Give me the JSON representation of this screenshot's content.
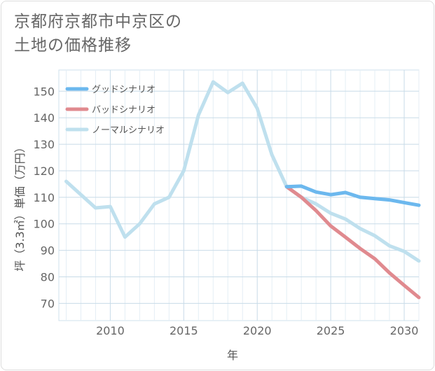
{
  "title": {
    "line1": "京都府京都市中京区の",
    "line2": "土地の価格推移"
  },
  "chart_data": {
    "type": "line",
    "xlabel": "年",
    "ylabel": "坪（3.3㎡）単価（万円）",
    "xlim": [
      2006.5,
      2031
    ],
    "ylim": [
      63.5,
      158
    ],
    "x_ticks": [
      2010,
      2015,
      2020,
      2025,
      2030
    ],
    "y_ticks": [
      70,
      80,
      90,
      100,
      110,
      120,
      130,
      140,
      150
    ],
    "grid": true,
    "legend_position": "top-left",
    "series": [
      {
        "name": "グッドシナリオ",
        "color": "#6cb8ee",
        "x": [
          2022,
          2023,
          2024,
          2025,
          2026,
          2027,
          2028,
          2029,
          2030,
          2031
        ],
        "values": [
          114,
          114.2,
          112,
          111,
          111.8,
          110,
          109.5,
          109,
          108,
          107
        ]
      },
      {
        "name": "バッドシナリオ",
        "color": "#e08a8f",
        "x": [
          2022,
          2023,
          2024,
          2025,
          2026,
          2027,
          2028,
          2029,
          2030,
          2031
        ],
        "values": [
          114,
          110,
          105,
          99.2,
          95,
          90.7,
          86.8,
          81.5,
          76.8,
          72.2
        ]
      },
      {
        "name": "ノーマルシナリオ",
        "color": "#bfe0ee",
        "x": [
          2007,
          2008,
          2009,
          2010,
          2011,
          2012,
          2013,
          2014,
          2015,
          2016,
          2017,
          2018,
          2019,
          2020,
          2021,
          2022,
          2023,
          2024,
          2025,
          2026,
          2027,
          2028,
          2029,
          2030,
          2031
        ],
        "values": [
          116,
          111,
          106,
          106.5,
          95,
          100,
          107.5,
          110,
          120,
          141,
          153.5,
          149.5,
          153,
          143.5,
          126,
          114,
          110,
          107.5,
          104,
          101.8,
          98.2,
          95.5,
          91.7,
          89.6,
          86
        ]
      }
    ]
  }
}
